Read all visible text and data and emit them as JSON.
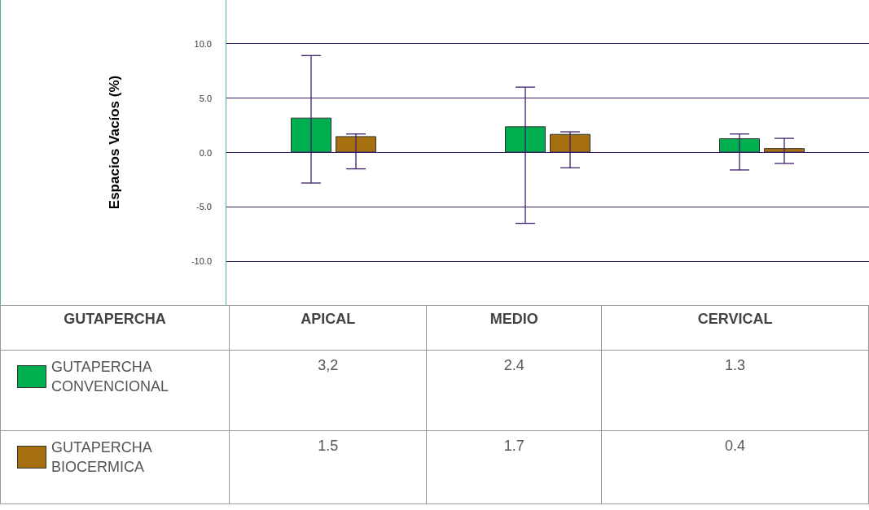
{
  "chart_data": {
    "type": "bar",
    "ylabel": "Espacios Vacíos (%)",
    "legend_title": "GUTAPERCHA",
    "categories": [
      "APICAL",
      "MEDIO",
      "CERVICAL"
    ],
    "series": [
      {
        "name": "GUTAPERCHA CONVENCIONAL",
        "color": "#00b050",
        "values": [
          3.2,
          2.4,
          1.3
        ],
        "value_labels": [
          "3,2",
          "2.4",
          "1.3"
        ],
        "errors": [
          [
            -2.8,
            8.9
          ],
          [
            -6.5,
            6.0
          ],
          [
            -1.6,
            1.7
          ]
        ]
      },
      {
        "name": "GUTAPERCHA BIOCERMICA",
        "color": "#a67011",
        "values": [
          1.5,
          1.7,
          0.4
        ],
        "value_labels": [
          "1.5",
          "1.7",
          "0.4"
        ],
        "errors": [
          [
            -1.5,
            1.7
          ],
          [
            -1.4,
            1.9
          ],
          [
            -1.0,
            1.3
          ]
        ]
      }
    ],
    "ylim": [
      -14,
      14
    ],
    "yticks": [
      {
        "value": -10,
        "label": "-10.0"
      },
      {
        "value": -5,
        "label": "-5.0"
      },
      {
        "value": 0,
        "label": "0.0"
      },
      {
        "value": 5,
        "label": "5.0"
      },
      {
        "value": 10,
        "label": "10.0"
      }
    ],
    "grid": "y",
    "legend": "bottom"
  }
}
